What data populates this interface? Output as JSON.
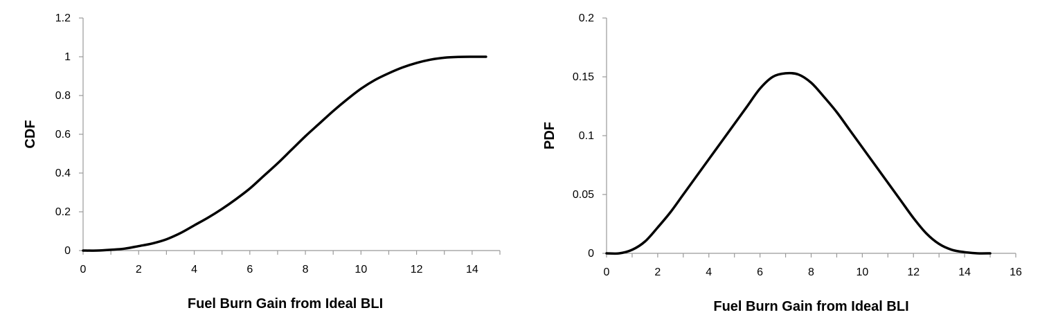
{
  "chart_data": [
    {
      "type": "line",
      "title": "",
      "xlabel": "Fuel Burn Gain from Ideal BLI",
      "ylabel": "CDF",
      "xlim": [
        0,
        15
      ],
      "ylim": [
        0,
        1.2
      ],
      "x_ticks": [
        "0",
        "2",
        "4",
        "6",
        "8",
        "10",
        "12",
        "14"
      ],
      "y_ticks": [
        "0",
        "0.2",
        "0.4",
        "0.6",
        "0.8",
        "1",
        "1.2"
      ],
      "grid": false,
      "series": [
        {
          "x": [
            0,
            0.5,
            1,
            1.5,
            2,
            2.5,
            3,
            3.5,
            4,
            4.5,
            5,
            5.5,
            6,
            6.5,
            7,
            7.5,
            8,
            8.5,
            9,
            9.5,
            10,
            10.5,
            11,
            11.5,
            12,
            12.5,
            13,
            13.5,
            14,
            14.5
          ],
          "values": [
            0,
            0,
            0.004,
            0.01,
            0.023,
            0.037,
            0.058,
            0.09,
            0.13,
            0.17,
            0.215,
            0.265,
            0.32,
            0.385,
            0.45,
            0.52,
            0.59,
            0.655,
            0.72,
            0.78,
            0.835,
            0.88,
            0.915,
            0.945,
            0.968,
            0.985,
            0.995,
            0.999,
            1.0,
            1.0
          ]
        }
      ]
    },
    {
      "type": "line",
      "title": "",
      "xlabel": "Fuel Burn Gain from Ideal BLI",
      "ylabel": "PDF",
      "xlim": [
        0,
        16
      ],
      "ylim": [
        0,
        0.2
      ],
      "x_ticks": [
        "0",
        "2",
        "4",
        "6",
        "8",
        "10",
        "12",
        "14",
        "16"
      ],
      "y_ticks": [
        "0",
        "0.05",
        "0.1",
        "0.15",
        "0.2"
      ],
      "grid": false,
      "series": [
        {
          "x": [
            0,
            0.5,
            1,
            1.5,
            2,
            2.5,
            3,
            3.5,
            4,
            4.5,
            5,
            5.5,
            6,
            6.5,
            7,
            7.5,
            8,
            8.5,
            9,
            9.5,
            10,
            10.5,
            11,
            11.5,
            12,
            12.5,
            13,
            13.5,
            14,
            14.5,
            15
          ],
          "values": [
            0,
            0,
            0.003,
            0.01,
            0.022,
            0.035,
            0.05,
            0.065,
            0.08,
            0.095,
            0.11,
            0.125,
            0.14,
            0.15,
            0.153,
            0.152,
            0.145,
            0.133,
            0.12,
            0.105,
            0.09,
            0.075,
            0.06,
            0.045,
            0.03,
            0.017,
            0.008,
            0.003,
            0.001,
            0,
            0
          ]
        }
      ]
    }
  ]
}
